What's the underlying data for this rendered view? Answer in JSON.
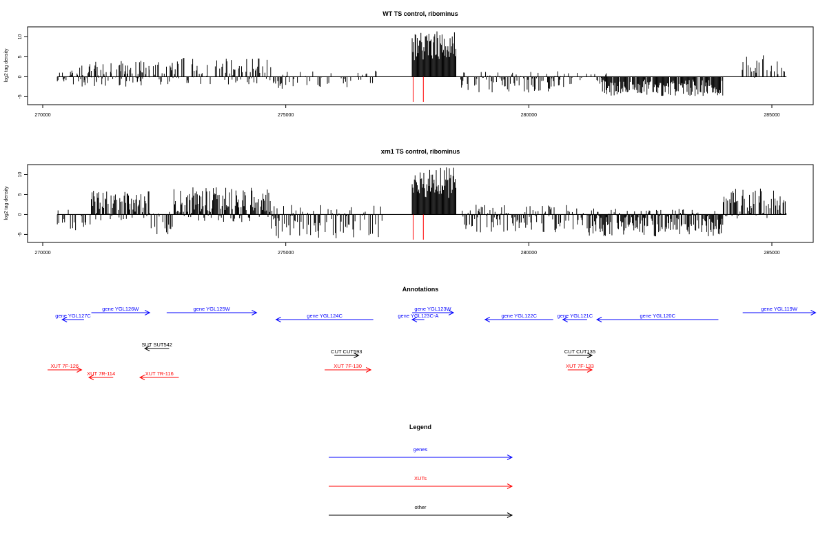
{
  "colors": {
    "genes": "#0000ff",
    "xuts": "#ff0000",
    "other": "#000000",
    "sense": "#000000",
    "marker": "#ff0000"
  },
  "chart_data": [
    {
      "type": "bar",
      "title": "WT TS control, ribominus",
      "xlabel": "",
      "ylabel": "log2 tag density",
      "xlim": [
        269700,
        285900
      ],
      "ylim": [
        -7,
        12.5
      ],
      "xticks": [
        270000,
        275000,
        280000,
        285000
      ],
      "yticks": [
        -5,
        0,
        5,
        10
      ],
      "series": [
        {
          "values": [
            {
              "x0": 270300,
              "x1": 272200,
              "lo": -2.5,
              "hi": 1.8,
              "dp": 0.5
            },
            {
              "x0": 270700,
              "x1": 272200,
              "lo": -1.5,
              "hi": 4,
              "dp": 0.5
            },
            {
              "x0": 272200,
              "x1": 274700,
              "lo": -2,
              "hi": 4.8,
              "dp": 0.6
            },
            {
              "x0": 274700,
              "x1": 276900,
              "lo": -3,
              "hi": 1.5,
              "dp": 0.35
            },
            {
              "x0": 277600,
              "x1": 278500,
              "lo": 0,
              "hi": 11.5,
              "dp": 1
            },
            {
              "x0": 278600,
              "x1": 280800,
              "lo": -4,
              "hi": 1.5,
              "dp": 0.6
            },
            {
              "x0": 280800,
              "x1": 281600,
              "lo": -2.5,
              "hi": 1.2,
              "dp": 0.4
            },
            {
              "x0": 281500,
              "x1": 284000,
              "lo": -4.8,
              "hi": 0,
              "dp": 0.9
            },
            {
              "x0": 284300,
              "x1": 285300,
              "lo": -0.5,
              "hi": 5.5,
              "dp": 0.4
            }
          ]
        }
      ],
      "markers": [
        277620,
        277830
      ]
    },
    {
      "type": "bar",
      "title": "xrn1 TS control, ribominus",
      "xlabel": "",
      "ylabel": "log2 tag density",
      "xlim": [
        269700,
        285900
      ],
      "ylim": [
        -7,
        12.5
      ],
      "xticks": [
        270000,
        275000,
        280000,
        285000
      ],
      "yticks": [
        -5,
        0,
        5,
        10
      ],
      "series": [
        {
          "values": [
            {
              "x0": 270300,
              "x1": 271000,
              "lo": -4,
              "hi": 1.2,
              "dp": 0.3
            },
            {
              "x0": 271000,
              "x1": 272200,
              "lo": -1.5,
              "hi": 6,
              "dp": 0.95
            },
            {
              "x0": 272200,
              "x1": 272700,
              "lo": -5,
              "hi": 1,
              "dp": 0.4
            },
            {
              "x0": 272700,
              "x1": 274700,
              "lo": -2,
              "hi": 7,
              "dp": 0.95
            },
            {
              "x0": 274700,
              "x1": 277000,
              "lo": -6,
              "hi": 2.5,
              "dp": 0.55
            },
            {
              "x0": 277600,
              "x1": 278500,
              "lo": 0,
              "hi": 11.8,
              "dp": 1
            },
            {
              "x0": 278600,
              "x1": 281200,
              "lo": -4.5,
              "hi": 2.5,
              "dp": 0.65
            },
            {
              "x0": 281200,
              "x1": 284000,
              "lo": -5.5,
              "hi": 1.5,
              "dp": 0.9
            },
            {
              "x0": 284000,
              "x1": 285300,
              "lo": -1,
              "hi": 6.5,
              "dp": 0.7
            }
          ]
        }
      ],
      "markers": [
        277620,
        277830
      ]
    }
  ],
  "annotations": {
    "title": "Annotations",
    "items": [
      {
        "label": "gene YGL127C",
        "color": "genes",
        "x0": 270400,
        "x1": 270850,
        "dir": "left",
        "row": 1
      },
      {
        "label": "gene YGL126W",
        "color": "genes",
        "x0": 271000,
        "x1": 272200,
        "dir": "right",
        "row": 0
      },
      {
        "label": "gene YGL125W",
        "color": "genes",
        "x0": 272550,
        "x1": 274400,
        "dir": "right",
        "row": 0
      },
      {
        "label": "gene YGL124C",
        "color": "genes",
        "x0": 274800,
        "x1": 276800,
        "dir": "left",
        "row": 1
      },
      {
        "label": "gene YGL123W",
        "color": "genes",
        "x0": 277600,
        "x1": 278450,
        "dir": "right",
        "row": 0
      },
      {
        "label": "gene YGL123C-A",
        "color": "genes",
        "x0": 277600,
        "x1": 277850,
        "dir": "left",
        "row": 1
      },
      {
        "label": "gene YGL122C",
        "color": "genes",
        "x0": 279100,
        "x1": 280500,
        "dir": "left",
        "row": 1
      },
      {
        "label": "gene YGL121C",
        "color": "genes",
        "x0": 280700,
        "x1": 281200,
        "dir": "left",
        "row": 1
      },
      {
        "label": "gene YGL120C",
        "color": "genes",
        "x0": 281400,
        "x1": 283900,
        "dir": "left",
        "row": 1
      },
      {
        "label": "gene YGL119W",
        "color": "genes",
        "x0": 284400,
        "x1": 285900,
        "dir": "right",
        "row": 0
      },
      {
        "label": "SUT SUT542",
        "color": "other",
        "x0": 272100,
        "x1": 272600,
        "dir": "left",
        "row": 2
      },
      {
        "label": "CUT CUT593",
        "color": "other",
        "x0": 276000,
        "x1": 276500,
        "dir": "right",
        "row": 3
      },
      {
        "label": "CUT CUT135",
        "color": "other",
        "x0": 280800,
        "x1": 281300,
        "dir": "right",
        "row": 3
      },
      {
        "label": "XUT 7F-126",
        "color": "xuts",
        "x0": 270100,
        "x1": 270800,
        "dir": "right",
        "row": 4
      },
      {
        "label": "XUT 7R-114",
        "color": "xuts",
        "x0": 270950,
        "x1": 271450,
        "dir": "left",
        "row": 5
      },
      {
        "label": "XUT 7R-116",
        "color": "xuts",
        "x0": 272000,
        "x1": 272800,
        "dir": "left",
        "row": 5
      },
      {
        "label": "XUT 7F-130",
        "color": "xuts",
        "x0": 275800,
        "x1": 276750,
        "dir": "right",
        "row": 4
      },
      {
        "label": "XUT 7F-133",
        "color": "xuts",
        "x0": 280800,
        "x1": 281300,
        "dir": "right",
        "row": 4
      }
    ]
  },
  "legend": {
    "title": "Legend",
    "items": [
      {
        "label": "genes",
        "color": "genes"
      },
      {
        "label": "XUTs",
        "color": "xuts"
      },
      {
        "label": "other",
        "color": "other"
      }
    ]
  }
}
